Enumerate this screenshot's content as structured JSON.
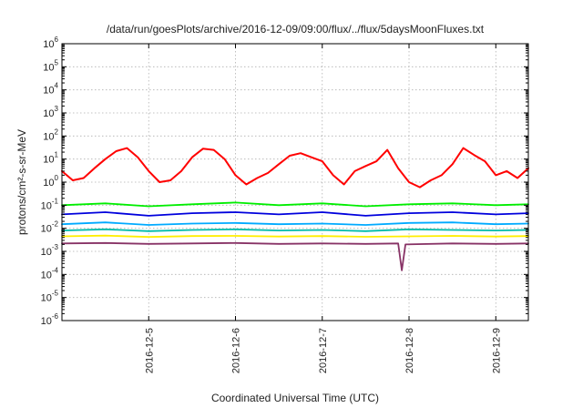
{
  "chart_data": {
    "type": "line",
    "title": "/data/run/goesPlots/archive/2016-12-09/09:00/flux/../flux/5daysMoonFluxes.txt",
    "xlabel": "Coordinated Universal Time (UTC)",
    "ylabel": "protons/cm²-s-sr-MeV",
    "y_scale": "log",
    "ylim_exponents": [
      -6,
      6
    ],
    "y_tick_exponents": [
      -6,
      -5,
      -4,
      -3,
      -2,
      -1,
      0,
      1,
      2,
      3,
      4,
      5,
      6
    ],
    "xlim": [
      "2016-12-04T00:00",
      "2016-12-09T09:00"
    ],
    "x_ticks": [
      "2016-12-5",
      "2016-12-6",
      "2016-12-7",
      "2016-12-8",
      "2016-12-9"
    ],
    "x_tick_dates": [
      "2016-12-05T00:00",
      "2016-12-06T00:00",
      "2016-12-07T00:00",
      "2016-12-08T00:00",
      "2016-12-09T00:00"
    ],
    "grid": true,
    "series": [
      {
        "color": "#ff0000",
        "x": [
          "2016-12-04T00:00",
          "2016-12-04T03:00",
          "2016-12-04T06:00",
          "2016-12-04T09:00",
          "2016-12-04T12:00",
          "2016-12-04T15:00",
          "2016-12-04T18:00",
          "2016-12-04T21:00",
          "2016-12-05T00:00",
          "2016-12-05T03:00",
          "2016-12-05T06:00",
          "2016-12-05T09:00",
          "2016-12-05T12:00",
          "2016-12-05T15:00",
          "2016-12-05T18:00",
          "2016-12-05T21:00",
          "2016-12-06T00:00",
          "2016-12-06T03:00",
          "2016-12-06T06:00",
          "2016-12-06T09:00",
          "2016-12-06T12:00",
          "2016-12-06T15:00",
          "2016-12-06T18:00",
          "2016-12-06T21:00",
          "2016-12-07T00:00",
          "2016-12-07T03:00",
          "2016-12-07T06:00",
          "2016-12-07T09:00",
          "2016-12-07T12:00",
          "2016-12-07T15:00",
          "2016-12-07T18:00",
          "2016-12-07T21:00",
          "2016-12-08T00:00",
          "2016-12-08T03:00",
          "2016-12-08T06:00",
          "2016-12-08T09:00",
          "2016-12-08T12:00",
          "2016-12-08T15:00",
          "2016-12-08T18:00",
          "2016-12-08T21:00",
          "2016-12-09T00:00",
          "2016-12-09T03:00",
          "2016-12-09T06:00",
          "2016-12-09T09:00"
        ],
        "values": [
          3,
          1.2,
          1.5,
          4,
          10,
          22,
          30,
          12,
          3,
          1,
          1.2,
          3,
          12,
          28,
          25,
          10,
          2,
          0.8,
          1.5,
          2.5,
          6,
          14,
          18,
          12,
          8,
          2,
          0.8,
          3,
          5,
          8,
          25,
          4,
          1,
          0.6,
          1.2,
          2,
          6,
          30,
          15,
          8,
          2,
          3,
          1.5,
          4
        ]
      },
      {
        "color": "#00ee00",
        "x": [
          "2016-12-04T00:00",
          "2016-12-04T12:00",
          "2016-12-05T00:00",
          "2016-12-05T12:00",
          "2016-12-06T00:00",
          "2016-12-06T12:00",
          "2016-12-07T00:00",
          "2016-12-07T12:00",
          "2016-12-08T00:00",
          "2016-12-08T12:00",
          "2016-12-09T00:00",
          "2016-12-09T09:00"
        ],
        "values": [
          0.1,
          0.12,
          0.09,
          0.11,
          0.13,
          0.1,
          0.12,
          0.09,
          0.11,
          0.12,
          0.1,
          0.11
        ]
      },
      {
        "color": "#0000dd",
        "x": [
          "2016-12-04T00:00",
          "2016-12-04T12:00",
          "2016-12-05T00:00",
          "2016-12-05T12:00",
          "2016-12-06T00:00",
          "2016-12-06T12:00",
          "2016-12-07T00:00",
          "2016-12-07T12:00",
          "2016-12-08T00:00",
          "2016-12-08T12:00",
          "2016-12-09T00:00",
          "2016-12-09T09:00"
        ],
        "values": [
          0.04,
          0.05,
          0.035,
          0.045,
          0.05,
          0.04,
          0.05,
          0.035,
          0.045,
          0.05,
          0.04,
          0.045
        ]
      },
      {
        "color": "#00aaff",
        "x": [
          "2016-12-04T00:00",
          "2016-12-04T12:00",
          "2016-12-05T00:00",
          "2016-12-05T12:00",
          "2016-12-06T00:00",
          "2016-12-06T12:00",
          "2016-12-07T00:00",
          "2016-12-07T12:00",
          "2016-12-08T00:00",
          "2016-12-08T12:00",
          "2016-12-09T00:00",
          "2016-12-09T09:00"
        ],
        "values": [
          0.015,
          0.018,
          0.014,
          0.016,
          0.017,
          0.015,
          0.016,
          0.014,
          0.017,
          0.018,
          0.015,
          0.016
        ]
      },
      {
        "color": "#00bbaa",
        "x": [
          "2016-12-04T00:00",
          "2016-12-04T12:00",
          "2016-12-05T00:00",
          "2016-12-05T12:00",
          "2016-12-06T00:00",
          "2016-12-06T12:00",
          "2016-12-07T00:00",
          "2016-12-07T12:00",
          "2016-12-08T00:00",
          "2016-12-08T12:00",
          "2016-12-09T00:00",
          "2016-12-09T09:00"
        ],
        "values": [
          0.008,
          0.009,
          0.0075,
          0.0085,
          0.009,
          0.008,
          0.0085,
          0.0075,
          0.009,
          0.0085,
          0.008,
          0.0085
        ]
      },
      {
        "color": "#ffee00",
        "x": [
          "2016-12-04T00:00",
          "2016-12-04T12:00",
          "2016-12-05T00:00",
          "2016-12-05T12:00",
          "2016-12-06T00:00",
          "2016-12-06T12:00",
          "2016-12-07T00:00",
          "2016-12-07T12:00",
          "2016-12-08T00:00",
          "2016-12-08T12:00",
          "2016-12-09T00:00",
          "2016-12-09T09:00"
        ],
        "values": [
          0.0045,
          0.0048,
          0.0042,
          0.0046,
          0.0047,
          0.0044,
          0.0046,
          0.0043,
          0.0045,
          0.0047,
          0.0044,
          0.0046
        ]
      },
      {
        "color": "#883366",
        "x": [
          "2016-12-04T00:00",
          "2016-12-04T12:00",
          "2016-12-05T00:00",
          "2016-12-05T12:00",
          "2016-12-06T00:00",
          "2016-12-06T12:00",
          "2016-12-07T00:00",
          "2016-12-07T12:00",
          "2016-12-07T21:00",
          "2016-12-07T22:00",
          "2016-12-07T23:00",
          "2016-12-08T12:00",
          "2016-12-09T00:00",
          "2016-12-09T09:00"
        ],
        "values": [
          0.0022,
          0.0023,
          0.0021,
          0.0022,
          0.0023,
          0.0021,
          0.0022,
          0.0021,
          0.0022,
          0.00015,
          0.002,
          0.0022,
          0.0021,
          0.0022
        ]
      }
    ]
  }
}
